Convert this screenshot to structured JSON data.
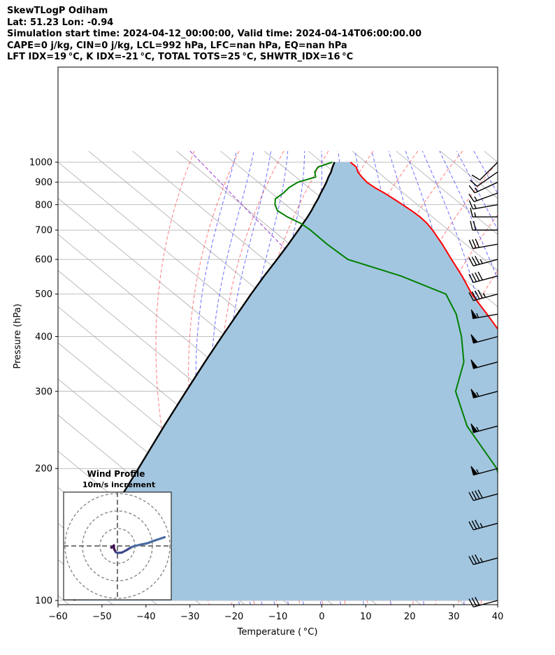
{
  "header": {
    "line1": "SkewTLogP Odiham",
    "line2": "Lat: 51.23   Lon: -0.94",
    "line3": "Simulation start time: 2024-04-12_00:00:00, Valid time: 2024-04-14T06:00:00.00",
    "line4": "CAPE=0 j/kg, CIN=0 j/kg, LCL=992 hPa, LFC=nan hPa, EQ=nan hPa",
    "line5": "LFT IDX=19 °C, K IDX=-21 °C, TOTAL TOTS=25 °C, SHWTR_IDX=16 °C"
  },
  "colors": {
    "temperature": "#ff0000",
    "dewpoint": "#008000",
    "parcel": "#000000",
    "cape_fill": "#a3c6e0",
    "dry_adiabat": "#ff6666",
    "moist_adiabat": "#5555ff",
    "mixing_ratio": "#9933cc",
    "isotherm": "#aaaaaa",
    "hodograph": "#3b4a8a"
  },
  "chart_data": {
    "type": "line",
    "subtype": "skew-T log-P",
    "xlabel": "Temperature ( °C)",
    "ylabel": "Pressure (hPa)",
    "xlim": [
      -60,
      40
    ],
    "ylim": [
      1050,
      100
    ],
    "y_scale": "log",
    "x_ticks": [
      "−60",
      "−50",
      "−40",
      "−30",
      "−20",
      "−10",
      "0",
      "10",
      "20",
      "30",
      "40"
    ],
    "y_ticks": [
      "1000",
      "900",
      "800",
      "700",
      "600",
      "500",
      "400",
      "300",
      "200",
      "100"
    ],
    "grid": true,
    "pressure_levels": [
      1000,
      975,
      950,
      925,
      900,
      875,
      850,
      825,
      800,
      775,
      750,
      725,
      700,
      650,
      600,
      550,
      500,
      450,
      400,
      350,
      300,
      250,
      200,
      175,
      150,
      125,
      100
    ],
    "series": [
      {
        "key": "temperature",
        "values": [
          6.5,
          6.5,
          5.5,
          5.0,
          4.7,
          5.0,
          5.7,
          6.2,
          6.6,
          7.0,
          7.2,
          7.0,
          6.4,
          4.7,
          2.6,
          0.4,
          -2.4,
          -4.5,
          -7.0,
          -9.8,
          -15.2,
          -24.0,
          -34.8,
          -38.8,
          -42.4,
          -48.9,
          -54.6
        ]
      },
      {
        "key": "dewpoint",
        "values": [
          2.4,
          -2.2,
          -4.3,
          -5.5,
          -11.0,
          -14.5,
          -17.3,
          -20.7,
          -22.4,
          -23.5,
          -23.0,
          -21.7,
          -21.4,
          -21.5,
          -21.0,
          -13.5,
          -8.3,
          -11.5,
          -16.5,
          -23.0,
          -33.0,
          -40.0,
          -45.0,
          -50.5,
          -58.0,
          -66.0,
          -73.0
        ]
      },
      {
        "key": "parcel",
        "values": [
          2.9,
          1.1,
          -0.6,
          -2.6,
          -4.5,
          -6.6,
          -8.8,
          -11.0,
          -13.4,
          -15.8,
          -18.4,
          -21.2,
          -24.1,
          -30.3,
          -37.1,
          -44.6,
          -52.6,
          -61.3,
          -71.0,
          -81.9,
          -94.3,
          -108.9,
          -126.5,
          -137.1,
          -149.0,
          -162.3,
          -177.6
        ]
      }
    ],
    "winds": {
      "levels": [
        1000,
        950,
        900,
        850,
        800,
        750,
        700,
        650,
        600,
        550,
        500,
        450,
        400,
        350,
        300,
        250,
        200,
        175,
        150,
        125,
        100
      ],
      "direction_deg": [
        225,
        235,
        245,
        250,
        260,
        270,
        270,
        260,
        255,
        255,
        255,
        260,
        255,
        255,
        255,
        255,
        255,
        255,
        255,
        255,
        255
      ],
      "speed_kt": [
        10,
        12,
        14,
        15,
        15,
        15,
        20,
        30,
        35,
        40,
        45,
        55,
        50,
        50,
        55,
        55,
        55,
        40,
        35,
        35,
        30
      ]
    },
    "hodograph": {
      "title": "Wind Profile",
      "subtitle": "10m/s increment",
      "rings_ms": [
        10,
        20,
        30
      ],
      "u": [
        -3.5,
        -2.0,
        -2.0,
        -1.0,
        0.0,
        2.5,
        5.0,
        8.0,
        10.0,
        13.0,
        17.0,
        21.0,
        27.0
      ],
      "v": [
        -1.0,
        0.3,
        -1.5,
        -3.5,
        -4.0,
        -3.8,
        -2.5,
        -0.7,
        0.0,
        0.7,
        1.5,
        3.0,
        5.0
      ]
    }
  }
}
